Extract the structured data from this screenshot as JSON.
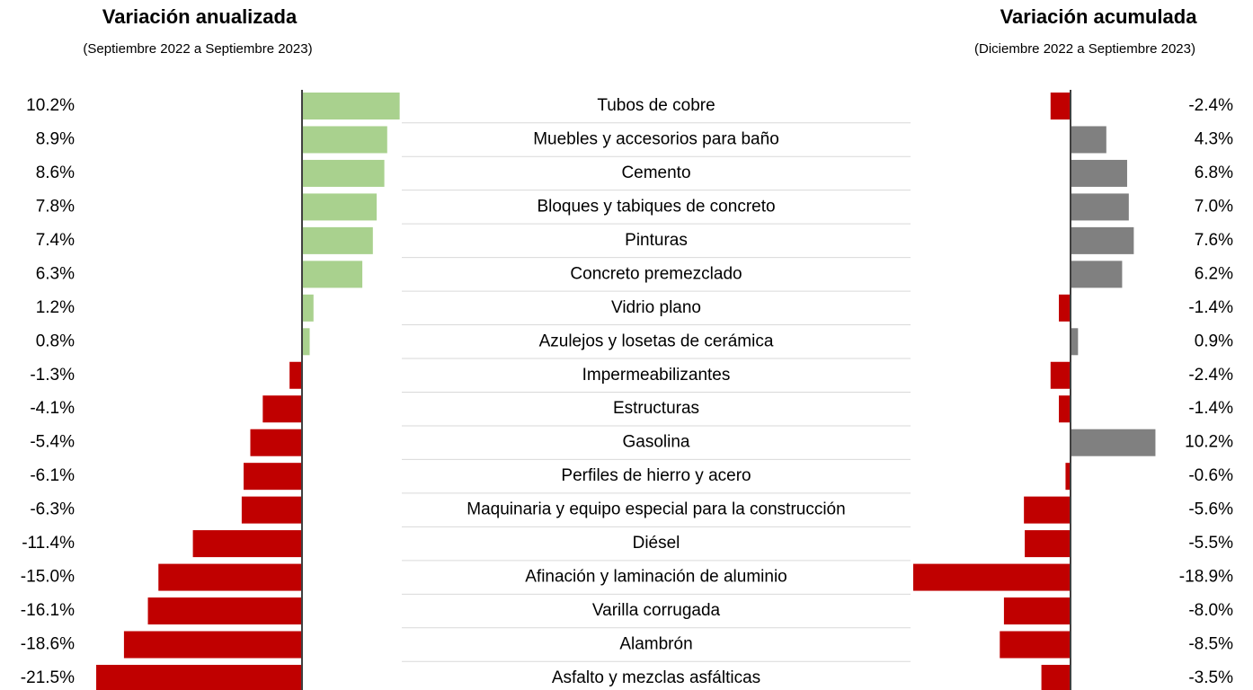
{
  "chart_data": [
    {
      "type": "bar",
      "orientation": "horizontal",
      "title": "Variación anualizada",
      "subtitle": "(Septiembre 2022 a Septiembre 2023)",
      "categories": [
        "Tubos de cobre",
        "Muebles y accesorios para baño",
        "Cemento",
        "Bloques y tabiques de concreto",
        "Pinturas",
        "Concreto premezclado",
        "Vidrio plano",
        "Azulejos y losetas de cerámica",
        "Impermeabilizantes",
        "Estructuras",
        "Gasolina",
        "Perfiles de hierro y acero",
        "Maquinaria y equipo especial para la construcción",
        "Diésel",
        "Afinación y laminación de aluminio",
        "Varilla corrugada",
        "Alambrón",
        "Asfalto y mezclas asfálticas"
      ],
      "values": [
        10.2,
        8.9,
        8.6,
        7.8,
        7.4,
        6.3,
        1.2,
        0.8,
        -1.3,
        -4.1,
        -5.4,
        -6.1,
        -6.3,
        -11.4,
        -15.0,
        -16.1,
        -18.6,
        -21.5
      ],
      "value_labels": [
        "10.2%",
        "8.9%",
        "8.6%",
        "7.8%",
        "7.4%",
        "6.3%",
        "1.2%",
        "0.8%",
        "-1.3%",
        "-4.1%",
        "-5.4%",
        "-6.1%",
        "-6.3%",
        "-11.4%",
        "-15.0%",
        "-16.1%",
        "-18.6%",
        "-21.5%"
      ],
      "color": "#a9d18e",
      "negative_color": "#c00000"
    },
    {
      "type": "bar",
      "orientation": "horizontal",
      "title": "Variación acumulada",
      "subtitle": "(Diciembre 2022 a Septiembre 2023)",
      "values": [
        -2.4,
        4.3,
        6.8,
        7.0,
        7.6,
        6.2,
        -1.4,
        0.9,
        -2.4,
        -1.4,
        10.2,
        -0.6,
        -5.6,
        -5.5,
        -18.9,
        -8.0,
        -8.5,
        -3.5
      ],
      "value_labels": [
        "-2.4%",
        "4.3%",
        "6.8%",
        "7.0%",
        "7.6%",
        "6.2%",
        "-1.4%",
        "0.9%",
        "-2.4%",
        "-1.4%",
        "10.2%",
        "-0.6%",
        "-5.6%",
        "-5.5%",
        "-18.9%",
        "-8.0%",
        "-8.5%",
        "-3.5%"
      ],
      "color": "#808080",
      "negative_color": "#c00000"
    }
  ]
}
